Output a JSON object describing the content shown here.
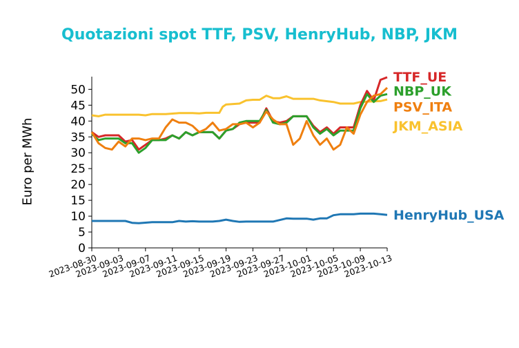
{
  "chart_data": {
    "type": "line",
    "title": "Quotazioni spot TTF, PSV, HenryHub, NBP, JKM",
    "title_color": "#17becf",
    "xlabel": "",
    "ylabel": "Euro per MWh",
    "ylim": [
      0,
      54
    ],
    "yticks": [
      0,
      5,
      10,
      15,
      20,
      25,
      30,
      35,
      40,
      45,
      50
    ],
    "xlim": [
      "2023-08-30",
      "2023-10-13"
    ],
    "xticks": [
      "2023-08-30",
      "2023-09-03",
      "2023-09-07",
      "2023-09-11",
      "2023-09-15",
      "2023-09-19",
      "2023-09-23",
      "2023-09-27",
      "2023-10-01",
      "2023-10-05",
      "2023-10-09",
      "2023-10-13"
    ],
    "grid": false,
    "legend": "right, labels at series end",
    "series": [
      {
        "name": "JKM_ASIA",
        "color": "#f9c22e",
        "points": [
          [
            "2023-08-30",
            41.8
          ],
          [
            "2023-08-31",
            41.5
          ],
          [
            "2023-09-01",
            42
          ],
          [
            "2023-09-02",
            42
          ],
          [
            "2023-09-04",
            42
          ],
          [
            "2023-09-06",
            42
          ],
          [
            "2023-09-07",
            41.8
          ],
          [
            "2023-09-08",
            42.2
          ],
          [
            "2023-09-10",
            42.2
          ],
          [
            "2023-09-12",
            42.5
          ],
          [
            "2023-09-14",
            42.5
          ],
          [
            "2023-09-15",
            42.4
          ],
          [
            "2023-09-16",
            42.6
          ],
          [
            "2023-09-18",
            42.6
          ],
          [
            "2023-09-18T12:00",
            44.5
          ],
          [
            "2023-09-19",
            45.2
          ],
          [
            "2023-09-21",
            45.5
          ],
          [
            "2023-09-22",
            46.5
          ],
          [
            "2023-09-23",
            46.7
          ],
          [
            "2023-09-24",
            46.7
          ],
          [
            "2023-09-25",
            48
          ],
          [
            "2023-09-26",
            47.2
          ],
          [
            "2023-09-27",
            47.2
          ],
          [
            "2023-09-28",
            47.8
          ],
          [
            "2023-09-29",
            47
          ],
          [
            "2023-10-02",
            47
          ],
          [
            "2023-10-03",
            46.5
          ],
          [
            "2023-10-05",
            46
          ],
          [
            "2023-10-06",
            45.5
          ],
          [
            "2023-10-08",
            45.5
          ],
          [
            "2023-10-09",
            46
          ],
          [
            "2023-10-11",
            46.2
          ],
          [
            "2023-10-12",
            46.3
          ],
          [
            "2023-10-13",
            46.8
          ]
        ]
      },
      {
        "name": "TTF_UE",
        "color": "#d62728",
        "points": [
          [
            "2023-08-30",
            36.5
          ],
          [
            "2023-08-31",
            35
          ],
          [
            "2023-09-01",
            35.5
          ],
          [
            "2023-09-02",
            35.5
          ],
          [
            "2023-09-03",
            35.5
          ],
          [
            "2023-09-04",
            33.5
          ],
          [
            "2023-09-05",
            34
          ],
          [
            "2023-09-06",
            31
          ],
          [
            "2023-09-07",
            32.5
          ],
          [
            "2023-09-08",
            34
          ],
          [
            "2023-09-09",
            34
          ],
          [
            "2023-09-10",
            34.5
          ],
          [
            "2023-09-11",
            35.5
          ],
          [
            "2023-09-12",
            34.5
          ],
          [
            "2023-09-13",
            36.5
          ],
          [
            "2023-09-14",
            35.5
          ],
          [
            "2023-09-15",
            36.5
          ],
          [
            "2023-09-16",
            36.5
          ],
          [
            "2023-09-17",
            36.5
          ],
          [
            "2023-09-18",
            34.5
          ],
          [
            "2023-09-19",
            37
          ],
          [
            "2023-09-20",
            37.5
          ],
          [
            "2023-09-21",
            39
          ],
          [
            "2023-09-22",
            39.5
          ],
          [
            "2023-09-23",
            39.5
          ],
          [
            "2023-09-24",
            39.5
          ],
          [
            "2023-09-25",
            44
          ],
          [
            "2023-09-26",
            40
          ],
          [
            "2023-09-27",
            39.5
          ],
          [
            "2023-09-28",
            40
          ],
          [
            "2023-09-29",
            41.5
          ],
          [
            "2023-09-30",
            41.5
          ],
          [
            "2023-10-01",
            41.5
          ],
          [
            "2023-10-02",
            38.5
          ],
          [
            "2023-10-03",
            36.5
          ],
          [
            "2023-10-04",
            38
          ],
          [
            "2023-10-05",
            36
          ],
          [
            "2023-10-06",
            38
          ],
          [
            "2023-10-07",
            38
          ],
          [
            "2023-10-08",
            38
          ],
          [
            "2023-10-09",
            45
          ],
          [
            "2023-10-10",
            49.5
          ],
          [
            "2023-10-11",
            46.5
          ],
          [
            "2023-10-12",
            53
          ],
          [
            "2023-10-13",
            53.8
          ]
        ]
      },
      {
        "name": "NBP_UK",
        "color": "#2ca02c",
        "points": [
          [
            "2023-08-30",
            36
          ],
          [
            "2023-08-31",
            34
          ],
          [
            "2023-09-01",
            34.5
          ],
          [
            "2023-09-02",
            34.5
          ],
          [
            "2023-09-03",
            34.5
          ],
          [
            "2023-09-04",
            33
          ],
          [
            "2023-09-05",
            33
          ],
          [
            "2023-09-06",
            30
          ],
          [
            "2023-09-07",
            31.5
          ],
          [
            "2023-09-08",
            34
          ],
          [
            "2023-09-09",
            34
          ],
          [
            "2023-09-10",
            34
          ],
          [
            "2023-09-11",
            35.5
          ],
          [
            "2023-09-12",
            34.5
          ],
          [
            "2023-09-13",
            36.5
          ],
          [
            "2023-09-14",
            35.5
          ],
          [
            "2023-09-15",
            36.5
          ],
          [
            "2023-09-16",
            36.5
          ],
          [
            "2023-09-17",
            36.5
          ],
          [
            "2023-09-18",
            34.5
          ],
          [
            "2023-09-19",
            37
          ],
          [
            "2023-09-20",
            37.5
          ],
          [
            "2023-09-21",
            39.5
          ],
          [
            "2023-09-22",
            40
          ],
          [
            "2023-09-23",
            40
          ],
          [
            "2023-09-24",
            40
          ],
          [
            "2023-09-25",
            43.5
          ],
          [
            "2023-09-26",
            39.5
          ],
          [
            "2023-09-27",
            39
          ],
          [
            "2023-09-28",
            39.5
          ],
          [
            "2023-09-29",
            41.5
          ],
          [
            "2023-09-30",
            41.5
          ],
          [
            "2023-10-01",
            41.5
          ],
          [
            "2023-10-02",
            38
          ],
          [
            "2023-10-03",
            36
          ],
          [
            "2023-10-04",
            37.5
          ],
          [
            "2023-10-05",
            35.5
          ],
          [
            "2023-10-06",
            37
          ],
          [
            "2023-10-07",
            37
          ],
          [
            "2023-10-08",
            37
          ],
          [
            "2023-10-09",
            44
          ],
          [
            "2023-10-10",
            48.5
          ],
          [
            "2023-10-11",
            46
          ],
          [
            "2023-10-12",
            48
          ],
          [
            "2023-10-13",
            48.5
          ]
        ]
      },
      {
        "name": "PSV_ITA",
        "color": "#ef7f0f",
        "points": [
          [
            "2023-08-30",
            36.5
          ],
          [
            "2023-08-31",
            33
          ],
          [
            "2023-09-01",
            31.5
          ],
          [
            "2023-09-02",
            31
          ],
          [
            "2023-09-03",
            33.5
          ],
          [
            "2023-09-04",
            32
          ],
          [
            "2023-09-05",
            34.5
          ],
          [
            "2023-09-06",
            34.5
          ],
          [
            "2023-09-07",
            34
          ],
          [
            "2023-09-08",
            34.5
          ],
          [
            "2023-09-09",
            34.5
          ],
          [
            "2023-09-10",
            38
          ],
          [
            "2023-09-11",
            40.5
          ],
          [
            "2023-09-12",
            39.5
          ],
          [
            "2023-09-13",
            39.5
          ],
          [
            "2023-09-14",
            38.5
          ],
          [
            "2023-09-15",
            36.5
          ],
          [
            "2023-09-16",
            37.5
          ],
          [
            "2023-09-17",
            39.5
          ],
          [
            "2023-09-18",
            37
          ],
          [
            "2023-09-19",
            37.5
          ],
          [
            "2023-09-20",
            39
          ],
          [
            "2023-09-21",
            39
          ],
          [
            "2023-09-22",
            39.5
          ],
          [
            "2023-09-23",
            38
          ],
          [
            "2023-09-24",
            39.5
          ],
          [
            "2023-09-25",
            43
          ],
          [
            "2023-09-26",
            40.5
          ],
          [
            "2023-09-27",
            39
          ],
          [
            "2023-09-28",
            39
          ],
          [
            "2023-09-29",
            32.5
          ],
          [
            "2023-09-30",
            34.5
          ],
          [
            "2023-10-01",
            40
          ],
          [
            "2023-10-02",
            35.5
          ],
          [
            "2023-10-03",
            32.5
          ],
          [
            "2023-10-04",
            34.5
          ],
          [
            "2023-10-05",
            31
          ],
          [
            "2023-10-06",
            32.5
          ],
          [
            "2023-10-07",
            38
          ],
          [
            "2023-10-08",
            36
          ],
          [
            "2023-10-09",
            42
          ],
          [
            "2023-10-10",
            46
          ],
          [
            "2023-10-11",
            48
          ],
          [
            "2023-10-12",
            48.5
          ],
          [
            "2023-10-13",
            50.5
          ]
        ]
      },
      {
        "name": "HenryHub_USA",
        "color": "#1f77b4",
        "points": [
          [
            "2023-08-30",
            8.5
          ],
          [
            "2023-09-01",
            8.5
          ],
          [
            "2023-09-04",
            8.5
          ],
          [
            "2023-09-05",
            7.9
          ],
          [
            "2023-09-06",
            7.8
          ],
          [
            "2023-09-08",
            8.1
          ],
          [
            "2023-09-11",
            8.1
          ],
          [
            "2023-09-12",
            8.5
          ],
          [
            "2023-09-13",
            8.3
          ],
          [
            "2023-09-14",
            8.4
          ],
          [
            "2023-09-15",
            8.3
          ],
          [
            "2023-09-17",
            8.3
          ],
          [
            "2023-09-18",
            8.5
          ],
          [
            "2023-09-19",
            8.9
          ],
          [
            "2023-09-20",
            8.5
          ],
          [
            "2023-09-21",
            8.2
          ],
          [
            "2023-09-22",
            8.3
          ],
          [
            "2023-09-25",
            8.3
          ],
          [
            "2023-09-26",
            8.3
          ],
          [
            "2023-09-28",
            9.3
          ],
          [
            "2023-09-29",
            9.2
          ],
          [
            "2023-10-01",
            9.2
          ],
          [
            "2023-10-02",
            8.9
          ],
          [
            "2023-10-03",
            9.3
          ],
          [
            "2023-10-04",
            9.3
          ],
          [
            "2023-10-05",
            10.3
          ],
          [
            "2023-10-06",
            10.6
          ],
          [
            "2023-10-08",
            10.6
          ],
          [
            "2023-10-09",
            10.8
          ],
          [
            "2023-10-11",
            10.8
          ],
          [
            "2023-10-12",
            10.6
          ],
          [
            "2023-10-13",
            10.4
          ]
        ]
      }
    ],
    "legend_entries": [
      {
        "label": "TTF_UE",
        "color": "#d62728",
        "y": 54
      },
      {
        "label": "NBP_UK",
        "color": "#2ca02c",
        "y": 49.5
      },
      {
        "label": "PSV_ITA",
        "color": "#ef7f0f",
        "y": 44.5
      },
      {
        "label": "JKM_ASIA",
        "color": "#f9c22e",
        "y": 38.5
      },
      {
        "label": "HenryHub_USA",
        "color": "#1f77b4",
        "y": 10.5
      }
    ]
  }
}
